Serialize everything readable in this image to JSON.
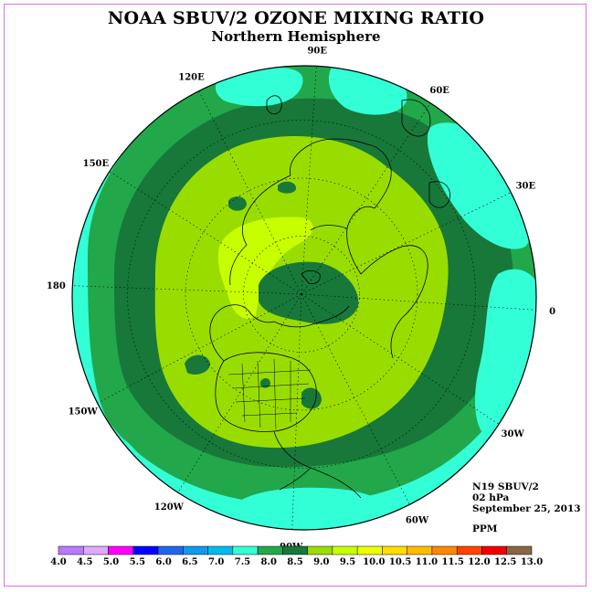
{
  "title": "NOAA SBUV/2 OZONE MIXING RATIO",
  "subtitle": "Northern Hemisphere",
  "info": {
    "instrument": "N19 SBUV/2",
    "level": "02 hPa",
    "date": "September 25, 2013",
    "units": "PPM"
  },
  "longitude_labels": [
    "90E",
    "60E",
    "30E",
    "0",
    "30W",
    "60W",
    "90W",
    "120W",
    "150W",
    "180",
    "150E",
    "120E"
  ],
  "colors": {
    "frame": "#e070e0",
    "ocean_outer": "#33ffd6",
    "ring_8_0": "#22a84a",
    "ring_8_5": "#17783a",
    "ring_9_0": "#99dd00",
    "ring_9_5": "#c8ff00",
    "polar_low": "#17783a",
    "coast": "#000000"
  },
  "colorbar": {
    "ticks": [
      "4.0",
      "4.5",
      "5.0",
      "5.5",
      "6.0",
      "6.5",
      "7.0",
      "7.5",
      "8.0",
      "8.5",
      "9.0",
      "9.5",
      "10.0",
      "10.5",
      "11.0",
      "11.5",
      "12.0",
      "12.5",
      "13.0"
    ],
    "colors": [
      "#bb77ff",
      "#ddaaff",
      "#ff00ff",
      "#0000ff",
      "#2266ee",
      "#1199ee",
      "#00bbee",
      "#33ffd6",
      "#22a84a",
      "#17783a",
      "#99dd00",
      "#c8ff00",
      "#eeff00",
      "#ffdd00",
      "#ffbb00",
      "#ff8800",
      "#ff4400",
      "#ee0000",
      "#886644"
    ]
  }
}
